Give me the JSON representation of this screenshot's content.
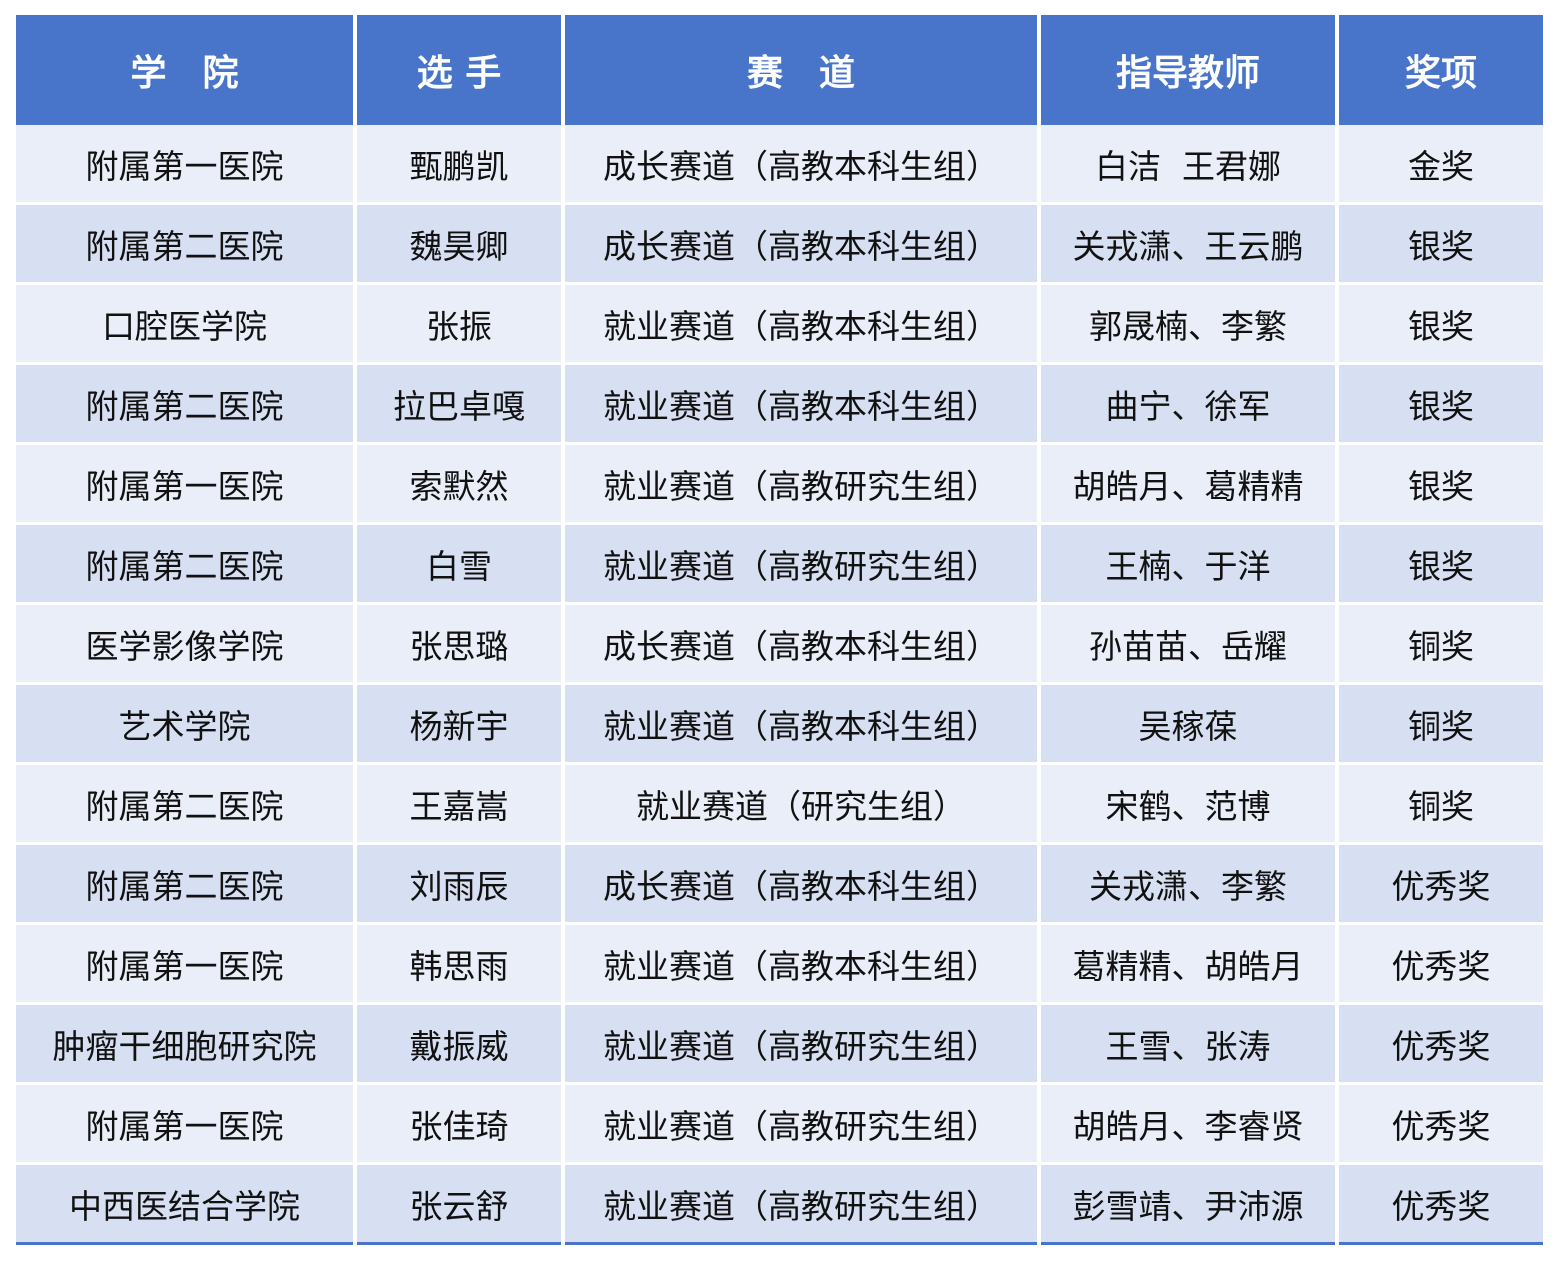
{
  "colors": {
    "header": "#4874C9",
    "row_light": "#E9EEF9",
    "row_dark": "#D7E0F2"
  },
  "headers": [
    "学　院",
    "选 手",
    "赛　道",
    "指导教师",
    "奖项"
  ],
  "rows": [
    [
      "附属第一医院",
      "甄鹏凯",
      "成长赛道（高教本科生组）",
      "白洁  王君娜",
      "金奖"
    ],
    [
      "附属第二医院",
      "魏昊卿",
      "成长赛道（高教本科生组）",
      "关戎潇、王云鹏",
      "银奖"
    ],
    [
      "口腔医学院",
      "张振",
      "就业赛道（高教本科生组）",
      "郭晟楠、李繁",
      "银奖"
    ],
    [
      "附属第二医院",
      "拉巴卓嘎",
      "就业赛道（高教本科生组）",
      "曲宁、徐军",
      "银奖"
    ],
    [
      "附属第一医院",
      "索默然",
      "就业赛道（高教研究生组）",
      "胡皓月、葛精精",
      "银奖"
    ],
    [
      "附属第二医院",
      "白雪",
      "就业赛道（高教研究生组）",
      "王楠、于洋",
      "银奖"
    ],
    [
      "医学影像学院",
      "张思璐",
      "成长赛道（高教本科生组）",
      "孙苗苗、岳耀",
      "铜奖"
    ],
    [
      "艺术学院",
      "杨新宇",
      "就业赛道（高教本科生组）",
      "吴稼葆",
      "铜奖"
    ],
    [
      "附属第二医院",
      "王嘉嵩",
      "就业赛道（研究生组）",
      "宋鹤、范博",
      "铜奖"
    ],
    [
      "附属第二医院",
      "刘雨辰",
      "成长赛道（高教本科生组）",
      "关戎潇、李繁",
      "优秀奖"
    ],
    [
      "附属第一医院",
      "韩思雨",
      "就业赛道（高教本科生组）",
      "葛精精、胡皓月",
      "优秀奖"
    ],
    [
      "肿瘤干细胞研究院",
      "戴振威",
      "就业赛道（高教研究生组）",
      "王雪、张涛",
      "优秀奖"
    ],
    [
      "附属第一医院",
      "张佳琦",
      "就业赛道（高教研究生组）",
      "胡皓月、李睿贤",
      "优秀奖"
    ],
    [
      "中西医结合学院",
      "张云舒",
      "就业赛道（高教研究生组）",
      "彭雪靖、尹沛源",
      "优秀奖"
    ]
  ]
}
